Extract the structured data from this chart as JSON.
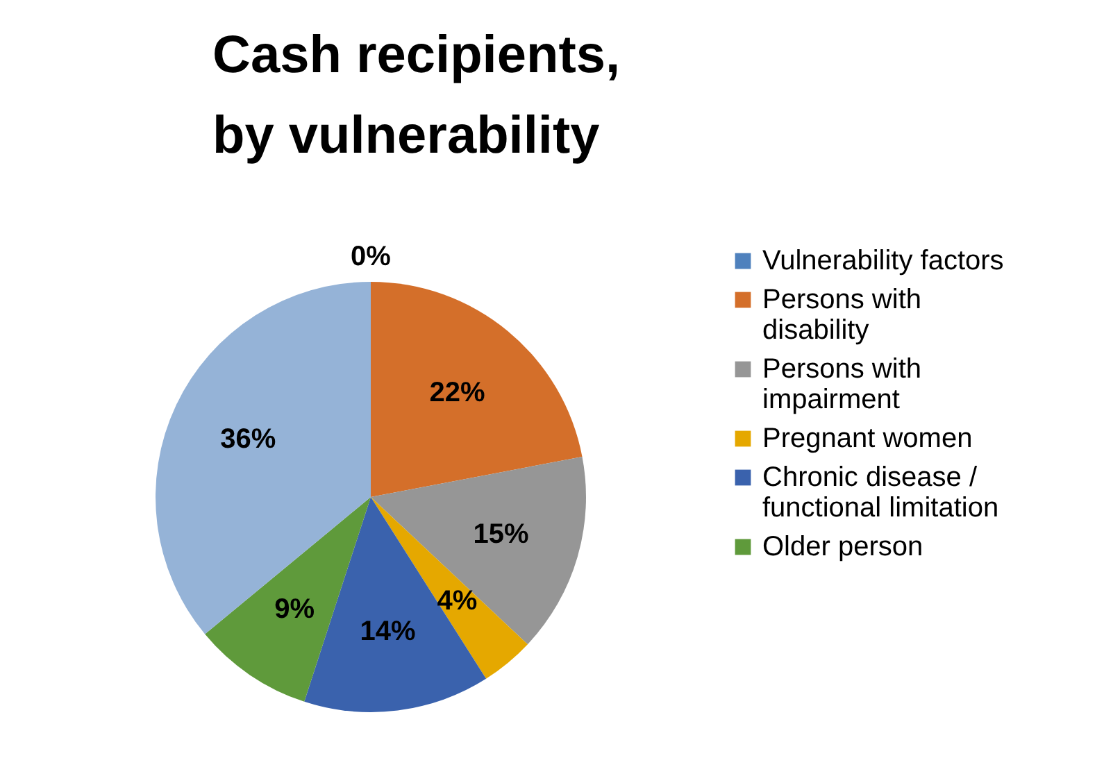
{
  "chart_data": {
    "type": "pie",
    "title": "Cash recipients, by vulnerability",
    "categories": [
      "Vulnerability factors",
      "Persons with disability",
      "Persons with impairment",
      "Pregnant women",
      "Chronic disease / functional limitation",
      "Older person",
      null
    ],
    "values": [
      0,
      22,
      15,
      4,
      14,
      9,
      36
    ],
    "value_labels": [
      "0%",
      "22%",
      "15%",
      "4%",
      "14%",
      "9%",
      "36%"
    ],
    "colors": [
      "#4f81bd",
      "#d46f2a",
      "#969696",
      "#e5a800",
      "#3a62ad",
      "#5f9a3b",
      "#95b3d7"
    ],
    "legend": "right"
  }
}
